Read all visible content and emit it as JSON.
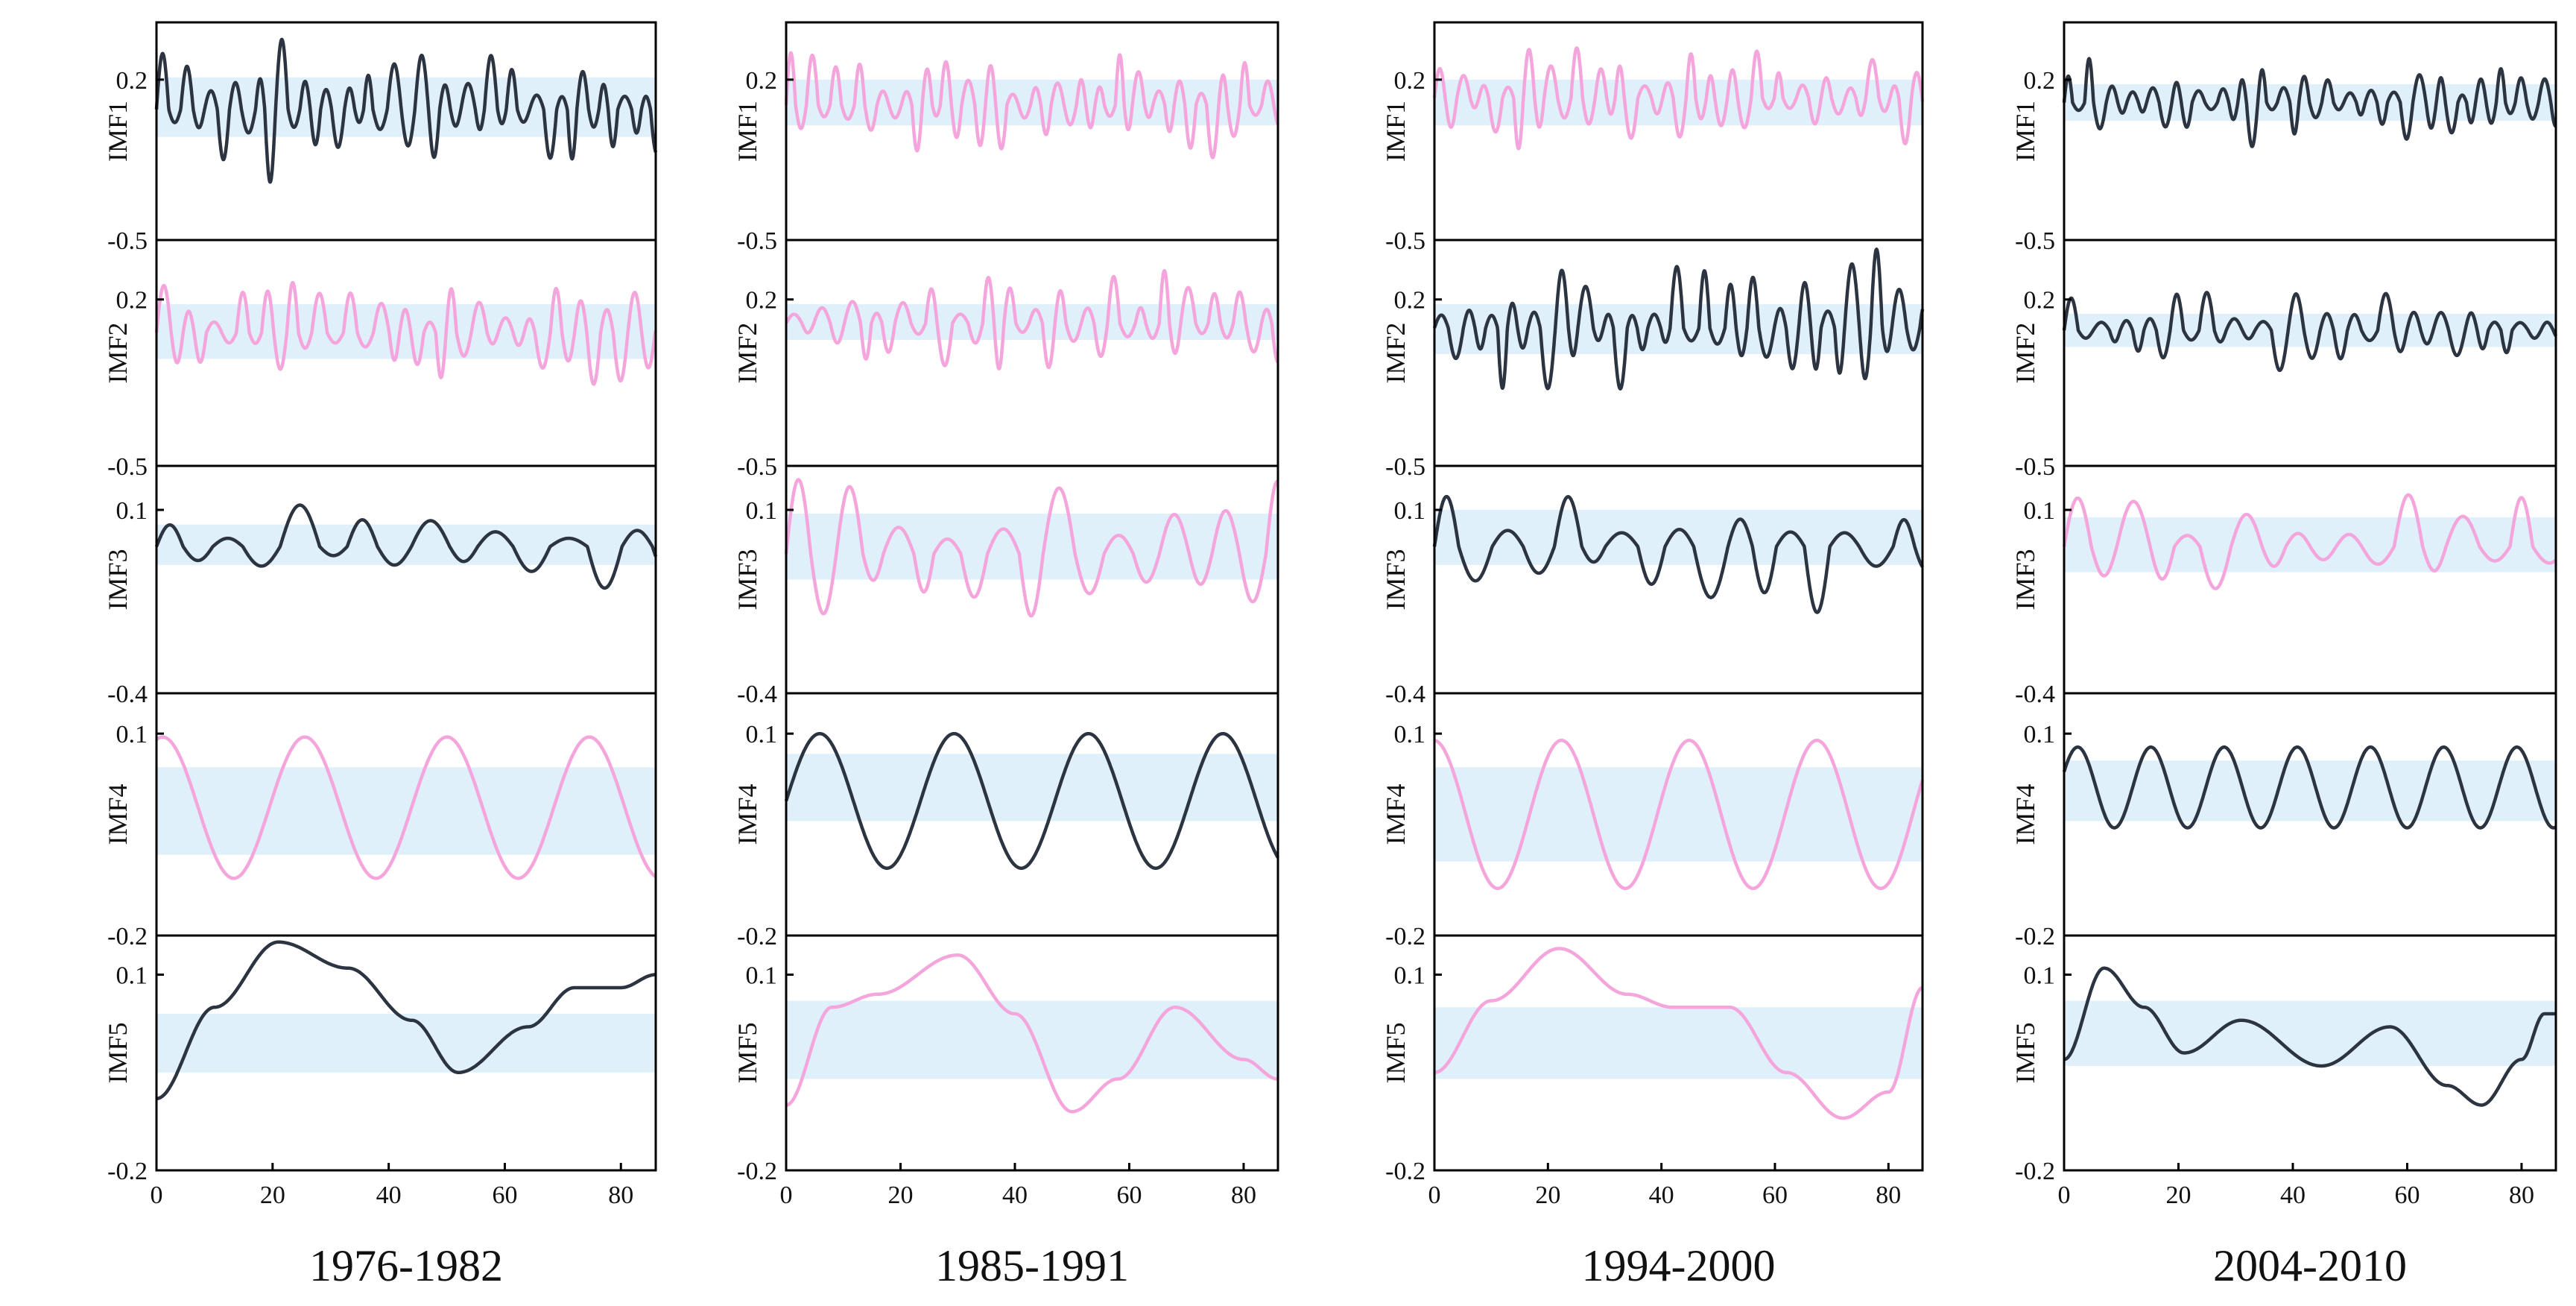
{
  "figure": {
    "line_colors": {
      "dark": "#2b3440",
      "pink": "#f4a6dc"
    },
    "band_color": "#dff0fb",
    "frame_color": "#000000"
  },
  "chart_data": [
    {
      "type": "line",
      "title": "1976-1982",
      "x_ticks": [
        "0",
        "20",
        "40",
        "60",
        "80"
      ],
      "xlim": [
        0,
        86
      ],
      "panels": [
        {
          "label": "IMF1",
          "top_tick": "0.2",
          "bottom_tick": "-0.5",
          "ylim": [
            -0.5,
            0.45
          ],
          "band": [
            -0.05,
            0.21
          ],
          "color": "dark",
          "period": 4,
          "amplitude": 0.22,
          "offset": 0.07,
          "seed": 11
        },
        {
          "label": "IMF2",
          "top_tick": "0.2",
          "bottom_tick": "-0.5",
          "ylim": [
            -0.5,
            0.45
          ],
          "band": [
            -0.05,
            0.18
          ],
          "color": "pink",
          "period": 4.5,
          "amplitude": 0.17,
          "offset": 0.06,
          "seed": 23
        },
        {
          "label": "IMF3",
          "top_tick": "0.1",
          "bottom_tick": "-0.4",
          "ylim": [
            -0.4,
            0.22
          ],
          "band": [
            -0.05,
            0.06
          ],
          "color": "dark",
          "period": 11,
          "amplitude": 0.09,
          "offset": 0.0,
          "seed": 31
        },
        {
          "label": "IMF4",
          "top_tick": "0.1",
          "bottom_tick": "-0.2",
          "ylim": [
            -0.2,
            0.16
          ],
          "band": [
            -0.08,
            0.05
          ],
          "color": "pink",
          "period": 24.5,
          "amplitude": 0.105,
          "offset": -0.01,
          "phase": 1.3,
          "seed": 0
        },
        {
          "label": "IMF5",
          "top_tick": "0.1",
          "bottom_tick": "-0.2",
          "ylim": [
            -0.2,
            0.16
          ],
          "band": [
            -0.05,
            0.04
          ],
          "color": "dark",
          "trend": [
            [
              0,
              -0.09
            ],
            [
              10,
              0.05
            ],
            [
              21,
              0.15
            ],
            [
              33,
              0.11
            ],
            [
              44,
              0.03
            ],
            [
              52,
              -0.05
            ],
            [
              64,
              0.02
            ],
            [
              72,
              0.08
            ],
            [
              80,
              0.08
            ],
            [
              86,
              0.1
            ]
          ],
          "seed": 0
        }
      ]
    },
    {
      "type": "line",
      "title": "1985-1991",
      "x_ticks": [
        "0",
        "20",
        "40",
        "60",
        "80"
      ],
      "xlim": [
        0,
        86
      ],
      "panels": [
        {
          "label": "IMF1",
          "top_tick": "0.2",
          "bottom_tick": "-0.5",
          "ylim": [
            -0.5,
            0.45
          ],
          "band": [
            0.0,
            0.2
          ],
          "color": "pink",
          "period": 3.8,
          "amplitude": 0.18,
          "offset": 0.09,
          "seed": 41
        },
        {
          "label": "IMF2",
          "top_tick": "0.2",
          "bottom_tick": "-0.5",
          "ylim": [
            -0.5,
            0.45
          ],
          "band": [
            0.03,
            0.18
          ],
          "color": "pink",
          "period": 4.6,
          "amplitude": 0.15,
          "offset": 0.1,
          "seed": 53
        },
        {
          "label": "IMF3",
          "top_tick": "0.1",
          "bottom_tick": "-0.4",
          "ylim": [
            -0.4,
            0.22
          ],
          "band": [
            -0.09,
            0.09
          ],
          "color": "pink",
          "period": 9,
          "amplitude": 0.16,
          "offset": -0.02,
          "seed": 61
        },
        {
          "label": "IMF4",
          "top_tick": "0.1",
          "bottom_tick": "-0.2",
          "ylim": [
            -0.2,
            0.16
          ],
          "band": [
            -0.03,
            0.07
          ],
          "color": "dark",
          "period": 23.5,
          "amplitude": 0.1,
          "offset": 0.0,
          "phase": 0.0,
          "seed": 0
        },
        {
          "label": "IMF5",
          "top_tick": "0.1",
          "bottom_tick": "-0.2",
          "ylim": [
            -0.2,
            0.16
          ],
          "band": [
            -0.06,
            0.06
          ],
          "color": "pink",
          "trend": [
            [
              0,
              -0.1
            ],
            [
              8,
              0.05
            ],
            [
              16,
              0.07
            ],
            [
              30,
              0.13
            ],
            [
              40,
              0.04
            ],
            [
              50,
              -0.11
            ],
            [
              58,
              -0.06
            ],
            [
              68,
              0.05
            ],
            [
              80,
              -0.03
            ],
            [
              86,
              -0.06
            ]
          ],
          "seed": 0
        }
      ]
    },
    {
      "type": "line",
      "title": "1994-2000",
      "x_ticks": [
        "0",
        "20",
        "40",
        "60",
        "80"
      ],
      "xlim": [
        0,
        86
      ],
      "panels": [
        {
          "label": "IMF1",
          "top_tick": "0.2",
          "bottom_tick": "-0.5",
          "ylim": [
            -0.5,
            0.45
          ],
          "band": [
            0.0,
            0.2
          ],
          "color": "pink",
          "period": 3.9,
          "amplitude": 0.17,
          "offset": 0.12,
          "seed": 71
        },
        {
          "label": "IMF2",
          "top_tick": "0.2",
          "bottom_tick": "-0.5",
          "ylim": [
            -0.5,
            0.45
          ],
          "band": [
            -0.03,
            0.18
          ],
          "color": "dark",
          "period": 4.4,
          "amplitude": 0.21,
          "offset": 0.08,
          "seed": 83
        },
        {
          "label": "IMF3",
          "top_tick": "0.1",
          "bottom_tick": "-0.4",
          "ylim": [
            -0.4,
            0.22
          ],
          "band": [
            -0.05,
            0.1
          ],
          "color": "dark",
          "period": 10,
          "amplitude": 0.15,
          "offset": 0.0,
          "seed": 97
        },
        {
          "label": "IMF4",
          "top_tick": "0.1",
          "bottom_tick": "-0.2",
          "ylim": [
            -0.2,
            0.16
          ],
          "band": [
            -0.09,
            0.05
          ],
          "color": "pink",
          "period": 22.5,
          "amplitude": 0.11,
          "offset": -0.02,
          "phase": 1.6,
          "seed": 0
        },
        {
          "label": "IMF5",
          "top_tick": "0.1",
          "bottom_tick": "-0.2",
          "ylim": [
            -0.2,
            0.16
          ],
          "band": [
            -0.06,
            0.05
          ],
          "color": "pink",
          "trend": [
            [
              0,
              -0.05
            ],
            [
              10,
              0.06
            ],
            [
              22,
              0.14
            ],
            [
              34,
              0.07
            ],
            [
              42,
              0.05
            ],
            [
              52,
              0.05
            ],
            [
              62,
              -0.05
            ],
            [
              72,
              -0.12
            ],
            [
              80,
              -0.08
            ],
            [
              86,
              0.08
            ]
          ],
          "seed": 0
        }
      ]
    },
    {
      "type": "line",
      "title": "2004-2010",
      "x_ticks": [
        "0",
        "20",
        "40",
        "60",
        "80"
      ],
      "xlim": [
        0,
        86
      ],
      "panels": [
        {
          "label": "IMF1",
          "top_tick": "0.2",
          "bottom_tick": "-0.5",
          "ylim": [
            -0.5,
            0.45
          ],
          "band": [
            0.02,
            0.18
          ],
          "color": "dark",
          "period": 3.7,
          "amplitude": 0.12,
          "offset": 0.1,
          "seed": 109
        },
        {
          "label": "IMF2",
          "top_tick": "0.2",
          "bottom_tick": "-0.5",
          "ylim": [
            -0.5,
            0.45
          ],
          "band": [
            0.0,
            0.14
          ],
          "color": "dark",
          "period": 4.8,
          "amplitude": 0.13,
          "offset": 0.07,
          "seed": 127
        },
        {
          "label": "IMF3",
          "top_tick": "0.1",
          "bottom_tick": "-0.4",
          "ylim": [
            -0.4,
            0.22
          ],
          "band": [
            -0.07,
            0.08
          ],
          "color": "pink",
          "period": 9.5,
          "amplitude": 0.12,
          "offset": 0.0,
          "seed": 139
        },
        {
          "label": "IMF4",
          "top_tick": "0.1",
          "bottom_tick": "-0.2",
          "ylim": [
            -0.2,
            0.16
          ],
          "band": [
            -0.03,
            0.06
          ],
          "color": "dark",
          "period": 12.8,
          "amplitude": 0.06,
          "offset": 0.02,
          "phase": 0.4,
          "seed": 0
        },
        {
          "label": "IMF5",
          "top_tick": "0.1",
          "bottom_tick": "-0.2",
          "ylim": [
            -0.2,
            0.16
          ],
          "band": [
            -0.04,
            0.06
          ],
          "color": "dark",
          "trend": [
            [
              0,
              -0.03
            ],
            [
              7,
              0.11
            ],
            [
              14,
              0.05
            ],
            [
              21,
              -0.02
            ],
            [
              31,
              0.03
            ],
            [
              45,
              -0.04
            ],
            [
              57,
              0.02
            ],
            [
              67,
              -0.07
            ],
            [
              73,
              -0.1
            ],
            [
              80,
              -0.03
            ],
            [
              84,
              0.04
            ]
          ],
          "seed": 0
        }
      ]
    }
  ]
}
